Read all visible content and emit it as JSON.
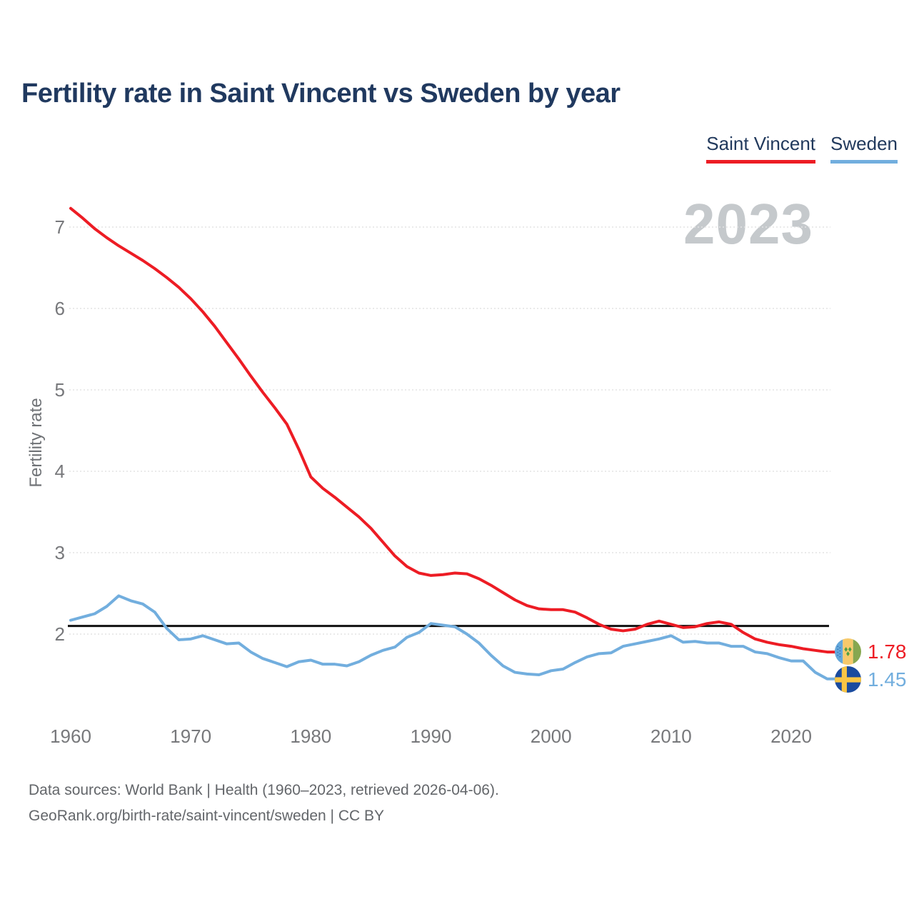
{
  "title": "Fertility rate in Saint Vincent vs Sweden by year",
  "watermark": "2023",
  "legend": {
    "saint_vincent": "Saint Vincent",
    "sweden": "Sweden"
  },
  "colors": {
    "saint_vincent": "#ed1c24",
    "sweden": "#72aede",
    "reference_line": "#111111",
    "gridline": "#e4e4e4",
    "axis_text": "#77787b",
    "title_text": "#20395f",
    "watermark_text": "#c5c9cc"
  },
  "end_labels": {
    "saint_vincent": {
      "value": "1.78",
      "flag": "saint-vincent-flag"
    },
    "sweden": {
      "value": "1.45",
      "flag": "sweden-flag"
    }
  },
  "footer": {
    "line1": "Data sources: World Bank | Health (1960–2023, retrieved 2026-04-06).",
    "line2": "GeoRank.org/birth-rate/saint-vincent/sweden | CC BY"
  },
  "chart_data": {
    "type": "line",
    "title": "Fertility rate in Saint Vincent vs Sweden by year",
    "xlabel": "",
    "ylabel": "Fertility rate",
    "grid": "horizontal",
    "legend_position": "top-right",
    "ylim": [
      1.3,
      7.4
    ],
    "xlim": [
      1960,
      2023
    ],
    "y_ticks": [
      2,
      3,
      4,
      5,
      6,
      7
    ],
    "x_ticks": [
      1960,
      1970,
      1980,
      1990,
      2000,
      2010,
      2020
    ],
    "reference_line": 2.1,
    "x": [
      1960,
      1961,
      1962,
      1963,
      1964,
      1965,
      1966,
      1967,
      1968,
      1969,
      1970,
      1971,
      1972,
      1973,
      1974,
      1975,
      1976,
      1977,
      1978,
      1979,
      1980,
      1981,
      1982,
      1983,
      1984,
      1985,
      1986,
      1987,
      1988,
      1989,
      1990,
      1991,
      1992,
      1993,
      1994,
      1995,
      1996,
      1997,
      1998,
      1999,
      2000,
      2001,
      2002,
      2003,
      2004,
      2005,
      2006,
      2007,
      2008,
      2009,
      2010,
      2011,
      2012,
      2013,
      2014,
      2015,
      2016,
      2017,
      2018,
      2019,
      2020,
      2021,
      2022,
      2023
    ],
    "series": [
      {
        "name": "Saint Vincent",
        "color": "#ed1c24",
        "final_value": 1.78,
        "values": [
          7.23,
          7.11,
          6.98,
          6.87,
          6.77,
          6.68,
          6.59,
          6.49,
          6.38,
          6.26,
          6.12,
          5.96,
          5.78,
          5.58,
          5.38,
          5.17,
          4.97,
          4.78,
          4.58,
          4.27,
          3.93,
          3.79,
          3.68,
          3.56,
          3.44,
          3.3,
          3.13,
          2.96,
          2.83,
          2.75,
          2.72,
          2.73,
          2.75,
          2.74,
          2.68,
          2.6,
          2.51,
          2.42,
          2.35,
          2.31,
          2.3,
          2.3,
          2.27,
          2.2,
          2.12,
          2.06,
          2.04,
          2.06,
          2.12,
          2.16,
          2.12,
          2.08,
          2.09,
          2.13,
          2.15,
          2.12,
          2.02,
          1.94,
          1.9,
          1.87,
          1.85,
          1.82,
          1.8,
          1.78
        ]
      },
      {
        "name": "Sweden",
        "color": "#72aede",
        "final_value": 1.45,
        "values": [
          2.17,
          2.21,
          2.25,
          2.34,
          2.47,
          2.41,
          2.37,
          2.27,
          2.07,
          1.93,
          1.94,
          1.98,
          1.93,
          1.88,
          1.89,
          1.78,
          1.7,
          1.65,
          1.6,
          1.66,
          1.68,
          1.63,
          1.63,
          1.61,
          1.66,
          1.74,
          1.8,
          1.84,
          1.96,
          2.02,
          2.13,
          2.11,
          2.09,
          2.0,
          1.89,
          1.74,
          1.61,
          1.53,
          1.51,
          1.5,
          1.55,
          1.57,
          1.65,
          1.72,
          1.76,
          1.77,
          1.85,
          1.88,
          1.91,
          1.94,
          1.98,
          1.9,
          1.91,
          1.89,
          1.89,
          1.85,
          1.85,
          1.78,
          1.76,
          1.71,
          1.67,
          1.67,
          1.53,
          1.45
        ]
      }
    ]
  }
}
